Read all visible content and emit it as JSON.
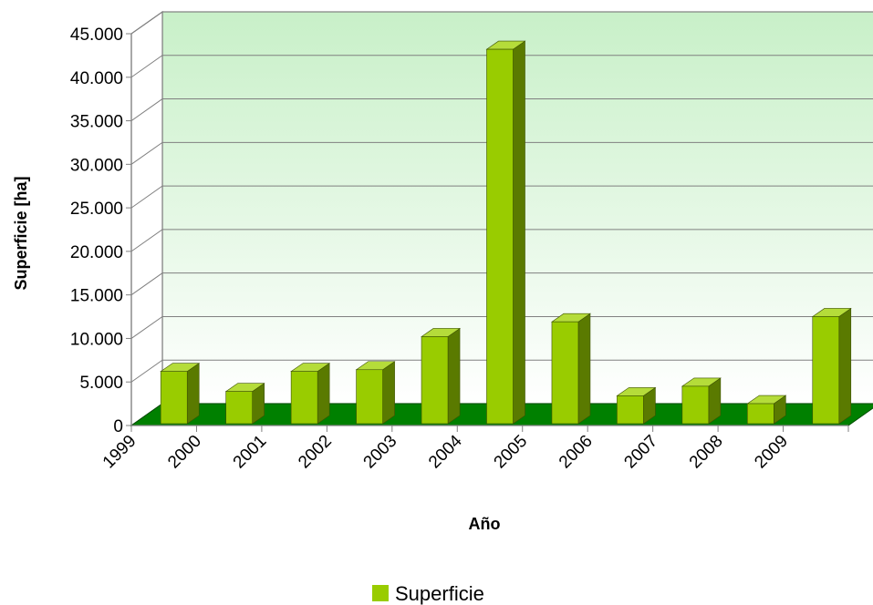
{
  "chart_data": {
    "type": "bar",
    "title": "",
    "xlabel": "Año",
    "ylabel": "Superficie [ha]",
    "ylim": [
      0,
      45000
    ],
    "yticks": [
      0,
      5000,
      10000,
      15000,
      20000,
      25000,
      30000,
      35000,
      40000,
      45000
    ],
    "ytick_labels": [
      "0",
      "5.000",
      "10.000",
      "15.000",
      "20.000",
      "25.000",
      "30.000",
      "35.000",
      "40.000",
      "45.000"
    ],
    "x_tick_labels": [
      "1999",
      "2000",
      "2001",
      "2002",
      "2003",
      "2004",
      "2005",
      "2006",
      "2007",
      "2008",
      "2009"
    ],
    "categories": [
      "1999",
      "2000",
      "2001",
      "2002",
      "2003",
      "2004",
      "2005",
      "2006",
      "2007",
      "2008",
      "2009"
    ],
    "series": [
      {
        "name": "Superficie",
        "values": [
          6000,
          3700,
          6000,
          6200,
          10000,
          43000,
          11700,
          3200,
          4300,
          2300,
          12300
        ]
      }
    ],
    "grid": true,
    "legend": "bottom-center",
    "colors": {
      "bar_front": "#99cc00",
      "bar_side": "#5a7a00",
      "bar_top": "#b5dc3a",
      "floor": "#008000",
      "wall_top": "#c8f0c8",
      "wall_bottom": "#ffffff"
    }
  }
}
